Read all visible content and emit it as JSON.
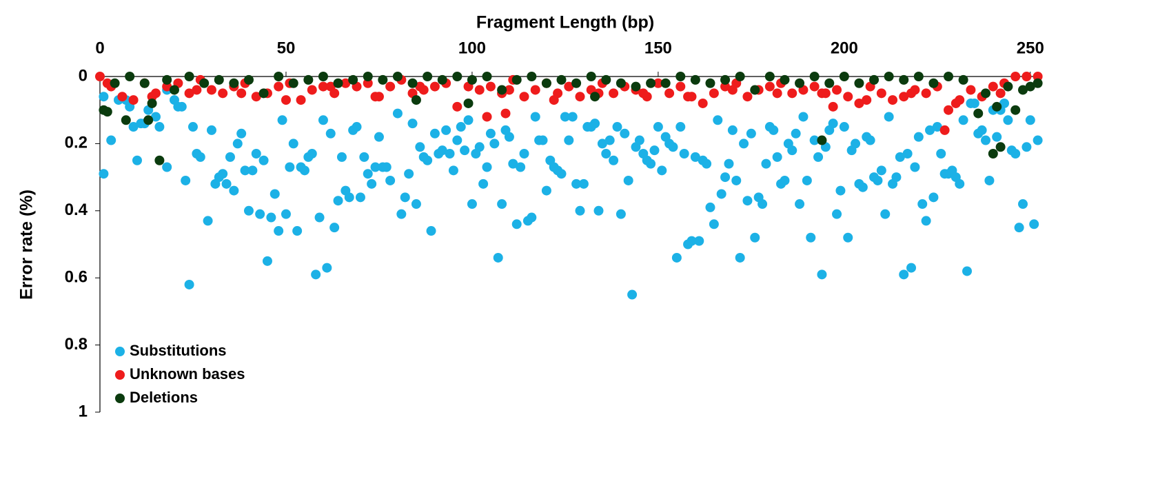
{
  "chart_data": {
    "type": "scatter",
    "xlabel": "Fragment Length (bp)",
    "ylabel": "Error rate (%)",
    "xlim": [
      0,
      253
    ],
    "xticks": [
      0,
      50,
      100,
      150,
      200,
      250
    ],
    "ylim": [
      0,
      1
    ],
    "yticks": [
      0,
      0.2,
      0.4,
      0.6,
      0.8,
      1
    ],
    "y_inverted": true,
    "x_axis_position": "top",
    "legend_position": "bottom-left",
    "series": [
      {
        "name": "Substitutions",
        "color": "#1cb1e6",
        "x": [
          1,
          1,
          3,
          5,
          7,
          8,
          9,
          10,
          11,
          12,
          13,
          15,
          16,
          18,
          18,
          20,
          21,
          22,
          23,
          24,
          25,
          26,
          27,
          29,
          30,
          31,
          32,
          33,
          34,
          35,
          36,
          37,
          38,
          39,
          40,
          41,
          42,
          43,
          44,
          45,
          46,
          47,
          48,
          49,
          50,
          51,
          52,
          53,
          54,
          55,
          56,
          57,
          58,
          59,
          60,
          61,
          62,
          63,
          64,
          65,
          66,
          67,
          68,
          69,
          70,
          71,
          72,
          73,
          74,
          75,
          76,
          77,
          78,
          80,
          81,
          82,
          83,
          84,
          85,
          86,
          87,
          88,
          89,
          90,
          91,
          92,
          93,
          94,
          95,
          96,
          97,
          98,
          99,
          100,
          101,
          102,
          103,
          104,
          105,
          106,
          107,
          108,
          109,
          110,
          111,
          112,
          113,
          114,
          115,
          116,
          117,
          118,
          119,
          120,
          121,
          122,
          123,
          124,
          125,
          126,
          127,
          128,
          129,
          130,
          131,
          132,
          133,
          134,
          135,
          136,
          137,
          138,
          139,
          140,
          141,
          142,
          143,
          144,
          145,
          146,
          147,
          148,
          149,
          150,
          151,
          152,
          153,
          154,
          155,
          156,
          157,
          158,
          159,
          160,
          161,
          162,
          163,
          164,
          165,
          166,
          167,
          168,
          169,
          170,
          171,
          172,
          173,
          174,
          175,
          176,
          177,
          178,
          179,
          180,
          181,
          182,
          183,
          184,
          185,
          186,
          187,
          188,
          189,
          190,
          191,
          192,
          193,
          194,
          195,
          196,
          197,
          198,
          199,
          200,
          201,
          202,
          203,
          204,
          205,
          206,
          207,
          208,
          209,
          210,
          211,
          212,
          213,
          214,
          215,
          216,
          217,
          218,
          219,
          220,
          221,
          222,
          223,
          224,
          225,
          226,
          227,
          228,
          229,
          230,
          231,
          232,
          233,
          234,
          235,
          236,
          237,
          238,
          239,
          240,
          241,
          242,
          243,
          244,
          245,
          246,
          247,
          248,
          249,
          250,
          251,
          252
        ],
        "values": [
          0.06,
          0.29,
          0.19,
          0.07,
          0.07,
          0.09,
          0.15,
          0.25,
          0.14,
          0.14,
          0.1,
          0.12,
          0.15,
          0.04,
          0.27,
          0.07,
          0.09,
          0.09,
          0.31,
          0.62,
          0.15,
          0.23,
          0.24,
          0.43,
          0.16,
          0.32,
          0.3,
          0.29,
          0.32,
          0.24,
          0.34,
          0.2,
          0.17,
          0.28,
          0.4,
          0.28,
          0.23,
          0.41,
          0.25,
          0.55,
          0.42,
          0.35,
          0.46,
          0.13,
          0.41,
          0.27,
          0.2,
          0.46,
          0.27,
          0.28,
          0.24,
          0.23,
          0.59,
          0.42,
          0.13,
          0.57,
          0.17,
          0.45,
          0.37,
          0.24,
          0.34,
          0.36,
          0.16,
          0.15,
          0.36,
          0.24,
          0.29,
          0.32,
          0.27,
          0.18,
          0.27,
          0.27,
          0.31,
          0.11,
          0.41,
          0.36,
          0.29,
          0.14,
          0.38,
          0.21,
          0.24,
          0.25,
          0.46,
          0.17,
          0.23,
          0.22,
          0.16,
          0.23,
          0.28,
          0.19,
          0.15,
          0.22,
          0.13,
          0.38,
          0.23,
          0.21,
          0.32,
          0.27,
          0.17,
          0.2,
          0.54,
          0.38,
          0.16,
          0.18,
          0.26,
          0.44,
          0.27,
          0.23,
          0.43,
          0.42,
          0.12,
          0.19,
          0.19,
          0.34,
          0.25,
          0.27,
          0.28,
          0.29,
          0.12,
          0.19,
          0.12,
          0.32,
          0.4,
          0.32,
          0.15,
          0.15,
          0.14,
          0.4,
          0.2,
          0.23,
          0.19,
          0.25,
          0.15,
          0.41,
          0.17,
          0.31,
          0.65,
          0.21,
          0.19,
          0.23,
          0.25,
          0.26,
          0.22,
          0.15,
          0.28,
          0.18,
          0.2,
          0.21,
          0.54,
          0.15,
          0.23,
          0.5,
          0.49,
          0.24,
          0.49,
          0.25,
          0.26,
          0.39,
          0.44,
          0.13,
          0.35,
          0.3,
          0.26,
          0.16,
          0.31,
          0.54,
          0.2,
          0.37,
          0.17,
          0.48,
          0.36,
          0.38,
          0.26,
          0.15,
          0.16,
          0.24,
          0.32,
          0.31,
          0.2,
          0.22,
          0.17,
          0.38,
          0.12,
          0.31,
          0.48,
          0.19,
          0.24,
          0.59,
          0.21,
          0.16,
          0.14,
          0.41,
          0.34,
          0.15,
          0.48,
          0.22,
          0.2,
          0.32,
          0.33,
          0.18,
          0.19,
          0.3,
          0.31,
          0.28,
          0.41,
          0.12,
          0.32,
          0.3,
          0.24,
          0.59,
          0.23,
          0.57,
          0.27,
          0.18,
          0.38,
          0.43,
          0.16,
          0.36,
          0.15,
          0.23,
          0.29,
          0.29,
          0.28,
          0.3,
          0.32,
          0.13,
          0.58,
          0.08,
          0.08,
          0.17,
          0.16,
          0.19,
          0.31,
          0.1,
          0.18,
          0.1,
          0.08,
          0.13,
          0.22,
          0.23,
          0.45,
          0.38,
          0.21,
          0.13,
          0.44,
          0.19
        ]
      },
      {
        "name": "Unknown bases",
        "color": "#ee1c1c",
        "x": [
          0,
          3,
          6,
          9,
          12,
          15,
          18,
          21,
          24,
          27,
          30,
          33,
          36,
          39,
          42,
          45,
          48,
          51,
          54,
          57,
          60,
          63,
          66,
          69,
          72,
          75,
          78,
          81,
          84,
          87,
          90,
          93,
          96,
          99,
          102,
          104,
          105,
          108,
          109,
          111,
          114,
          117,
          120,
          123,
          126,
          129,
          132,
          135,
          138,
          141,
          144,
          147,
          150,
          153,
          156,
          159,
          162,
          165,
          168,
          171,
          174,
          177,
          180,
          183,
          186,
          189,
          192,
          195,
          197,
          198,
          201,
          204,
          207,
          210,
          213,
          216,
          219,
          222,
          225,
          227,
          228,
          231,
          234,
          237,
          240,
          243,
          246,
          249,
          252,
          2,
          14,
          26,
          38,
          50,
          62,
          74,
          86,
          110,
          122,
          134,
          146,
          158,
          170,
          182,
          194,
          206,
          218,
          230,
          242
        ],
        "values": [
          0,
          0.03,
          0.06,
          0.07,
          0.02,
          0.05,
          0.03,
          0.02,
          0.05,
          0.01,
          0.04,
          0.05,
          0.03,
          0.02,
          0.06,
          0.05,
          0.03,
          0.02,
          0.07,
          0.04,
          0.03,
          0.05,
          0.02,
          0.03,
          0.02,
          0.06,
          0.03,
          0.01,
          0.05,
          0.04,
          0.03,
          0.02,
          0.09,
          0.03,
          0.04,
          0.12,
          0.03,
          0.05,
          0.11,
          0.01,
          0.06,
          0.04,
          0.02,
          0.05,
          0.03,
          0.06,
          0.04,
          0.02,
          0.05,
          0.03,
          0.04,
          0.06,
          0.02,
          0.05,
          0.03,
          0.06,
          0.08,
          0.05,
          0.03,
          0.02,
          0.06,
          0.04,
          0.03,
          0.02,
          0.05,
          0.04,
          0.03,
          0.05,
          0.09,
          0.04,
          0.06,
          0.08,
          0.03,
          0.05,
          0.07,
          0.06,
          0.04,
          0.05,
          0.03,
          0.16,
          0.1,
          0.07,
          0.04,
          0.06,
          0.03,
          0.02,
          0,
          0,
          0,
          0.02,
          0.06,
          0.04,
          0.05,
          0.07,
          0.03,
          0.06,
          0.03,
          0.04,
          0.07,
          0.05,
          0.05,
          0.06,
          0.04,
          0.05,
          0.05,
          0.07,
          0.05,
          0.08,
          0.05
        ]
      },
      {
        "name": "Deletions",
        "color": "#0b3b0e",
        "x": [
          1,
          2,
          7,
          13,
          14,
          16,
          4,
          8,
          12,
          18,
          20,
          24,
          28,
          32,
          36,
          40,
          44,
          48,
          52,
          56,
          60,
          64,
          68,
          72,
          76,
          80,
          84,
          85,
          88,
          92,
          96,
          99,
          100,
          104,
          108,
          112,
          116,
          120,
          124,
          128,
          132,
          133,
          136,
          140,
          144,
          148,
          152,
          156,
          160,
          164,
          168,
          172,
          176,
          180,
          184,
          188,
          192,
          194,
          196,
          200,
          204,
          208,
          212,
          216,
          220,
          224,
          228,
          232,
          236,
          238,
          240,
          241,
          242,
          244,
          246,
          248,
          250,
          252
        ],
        "values": [
          0.1,
          0.105,
          0.13,
          0.13,
          0.08,
          0.25,
          0.02,
          0,
          0.02,
          0.01,
          0.04,
          0,
          0.02,
          0.01,
          0.02,
          0.01,
          0.05,
          0,
          0.02,
          0.01,
          0,
          0.02,
          0.01,
          0,
          0.01,
          0,
          0.02,
          0.07,
          0,
          0.01,
          0,
          0.08,
          0.01,
          0,
          0.04,
          0.01,
          0,
          0.02,
          0.01,
          0.02,
          0,
          0.06,
          0.01,
          0.02,
          0.03,
          0.02,
          0.02,
          0,
          0.01,
          0.02,
          0.01,
          0,
          0.04,
          0,
          0.01,
          0.02,
          0,
          0.19,
          0.02,
          0,
          0.02,
          0.01,
          0,
          0.01,
          0,
          0.02,
          0,
          0.01,
          0.11,
          0.05,
          0.23,
          0.09,
          0.21,
          0.03,
          0.1,
          0.04,
          0.03,
          0.02
        ]
      }
    ]
  }
}
